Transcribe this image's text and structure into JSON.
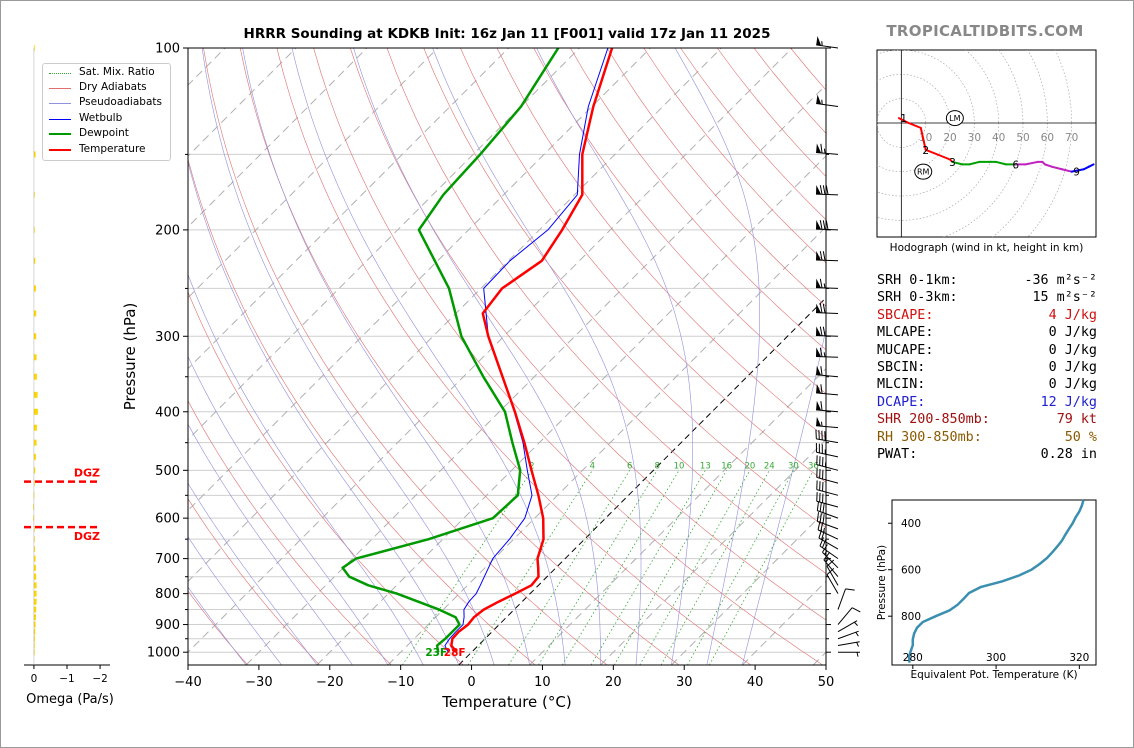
{
  "title": "HRRR Sounding at KDKB Init: 16z Jan 11 [F001] valid 17z Jan 11 2025",
  "brand": "TROPICALTIDBITS.COM",
  "colors": {
    "temperature": "#ff0000",
    "dewpoint": "#009900",
    "wetbulb": "#0000ff",
    "dry_adiabat": "#e07070",
    "pseudoadiabat": "#9090e0",
    "mixing_ratio": "#33aa33",
    "dgz": "#ff0000",
    "omega_bar": "#ffd700",
    "theta_e": "#3a8fb0",
    "hodo_red": "#ff0000",
    "hodo_green": "#00a000",
    "hodo_magenta": "#c020c0",
    "hodo_blue": "#0000ff",
    "srh_text": "#000000",
    "cape_text": "#d01010",
    "dcape_text": "#2020d0",
    "shr_text": "#a01010",
    "rh_text": "#8b5a00"
  },
  "legend": [
    {
      "label": "Sat. Mix. Ratio",
      "style": "mixing"
    },
    {
      "label": "Dry Adiabats",
      "style": "dry"
    },
    {
      "label": "Pseudoadiabats",
      "style": "pseudo"
    },
    {
      "label": "Wetbulb",
      "style": "wetbulb"
    },
    {
      "label": "Dewpoint",
      "style": "dewpoint"
    },
    {
      "label": "Temperature",
      "style": "temperature"
    }
  ],
  "surface_labels": {
    "dewpoint": "23F",
    "temperature": "28F"
  },
  "dgz_label": "DGZ",
  "parameters": [
    {
      "label": "SRH 0-1km:",
      "value": "-36 m²s⁻²",
      "color": "srh_text"
    },
    {
      "label": "SRH 0-3km:",
      "value": "15 m²s⁻²",
      "color": "srh_text"
    },
    {
      "label": "SBCAPE:",
      "value": "4 J/kg",
      "color": "cape_text"
    },
    {
      "label": "MLCAPE:",
      "value": "0 J/kg",
      "color": "srh_text"
    },
    {
      "label": "MUCAPE:",
      "value": "0 J/kg",
      "color": "srh_text"
    },
    {
      "label": "SBCIN:",
      "value": "0 J/kg",
      "color": "srh_text"
    },
    {
      "label": "MLCIN:",
      "value": "0 J/kg",
      "color": "srh_text"
    },
    {
      "label": "DCAPE:",
      "value": "12 J/kg",
      "color": "dcape_text"
    },
    {
      "label": "SHR 200-850mb:",
      "value": "79 kt",
      "color": "shr_text"
    },
    {
      "label": "RH 300-850mb:",
      "value": "50 %",
      "color": "rh_text"
    },
    {
      "label": "PWAT:",
      "value": "0.28 in",
      "color": "srh_text"
    }
  ],
  "chart_data": [
    {
      "type": "line",
      "name": "skew-t",
      "xlabel": "Temperature (°C)",
      "ylabel": "Pressure (hPa)",
      "xlim": [
        -40,
        50
      ],
      "ylim": [
        1050,
        100
      ],
      "y_log": true,
      "skew_degrees": 45,
      "xticks": [
        -40,
        -30,
        -20,
        -10,
        0,
        10,
        20,
        30,
        40,
        50
      ],
      "yticks": [
        100,
        200,
        300,
        400,
        500,
        600,
        700,
        800,
        900,
        1000
      ],
      "grid": true,
      "legend_position": "top-left",
      "series": [
        {
          "name": "Temperature",
          "points": [
            [
              1000,
              -2.1
            ],
            [
              975,
              -3.8
            ],
            [
              950,
              -4.6
            ],
            [
              925,
              -4.7
            ],
            [
              900,
              -4.4
            ],
            [
              875,
              -4.6
            ],
            [
              850,
              -4.3
            ],
            [
              825,
              -3.3
            ],
            [
              800,
              -2.1
            ],
            [
              775,
              -1.0
            ],
            [
              750,
              -1.2
            ],
            [
              725,
              -2.5
            ],
            [
              700,
              -3.9
            ],
            [
              650,
              -5.8
            ],
            [
              600,
              -8.8
            ],
            [
              550,
              -12.7
            ],
            [
              500,
              -17.2
            ],
            [
              450,
              -22.1
            ],
            [
              400,
              -27.8
            ],
            [
              350,
              -34.5
            ],
            [
              300,
              -42.2
            ],
            [
              275,
              -46.2
            ],
            [
              250,
              -47.0
            ],
            [
              225,
              -45.3
            ],
            [
              200,
              -46.8
            ],
            [
              175,
              -48.9
            ],
            [
              150,
              -54.6
            ],
            [
              125,
              -59.8
            ],
            [
              100,
              -65.4
            ]
          ]
        },
        {
          "name": "Dewpoint",
          "points": [
            [
              1000,
              -4.7
            ],
            [
              975,
              -5.8
            ],
            [
              950,
              -5.6
            ],
            [
              925,
              -5.6
            ],
            [
              900,
              -5.6
            ],
            [
              875,
              -7.2
            ],
            [
              850,
              -10.6
            ],
            [
              800,
              -18.8
            ],
            [
              775,
              -24.0
            ],
            [
              750,
              -27.9
            ],
            [
              725,
              -30.1
            ],
            [
              700,
              -29.5
            ],
            [
              650,
              -22.0
            ],
            [
              600,
              -15.9
            ],
            [
              550,
              -15.6
            ],
            [
              500,
              -18.8
            ],
            [
              450,
              -23.8
            ],
            [
              400,
              -29.2
            ],
            [
              350,
              -37.2
            ],
            [
              300,
              -46.0
            ],
            [
              250,
              -54.5
            ],
            [
              200,
              -67.0
            ],
            [
              175,
              -68.5
            ],
            [
              150,
              -69.0
            ],
            [
              125,
              -70.0
            ],
            [
              100,
              -73.0
            ]
          ]
        },
        {
          "name": "Wetbulb",
          "points": [
            [
              1000,
              -3.3
            ],
            [
              975,
              -4.7
            ],
            [
              950,
              -5.0
            ],
            [
              925,
              -5.1
            ],
            [
              900,
              -5.1
            ],
            [
              875,
              -6.0
            ],
            [
              850,
              -7.1
            ],
            [
              825,
              -7.5
            ],
            [
              800,
              -7.6
            ],
            [
              775,
              -8.2
            ],
            [
              700,
              -10.2
            ],
            [
              650,
              -10.6
            ],
            [
              600,
              -11.4
            ],
            [
              550,
              -13.6
            ],
            [
              500,
              -17.8
            ],
            [
              450,
              -22.3
            ],
            [
              400,
              -27.9
            ],
            [
              350,
              -34.5
            ],
            [
              300,
              -42.2
            ],
            [
              250,
              -49.6
            ],
            [
              225,
              -49.8
            ],
            [
              200,
              -48.8
            ],
            [
              175,
              -49.6
            ],
            [
              150,
              -55.0
            ],
            [
              125,
              -60.5
            ],
            [
              100,
              -66.0
            ]
          ]
        }
      ],
      "dgz_pressures": [
        522,
        621
      ]
    },
    {
      "type": "bar",
      "name": "omega",
      "xlabel": "Omega (Pa/s)",
      "xlim": [
        0.3,
        -2.3
      ],
      "xticks": [
        0,
        -1,
        -2
      ],
      "ylim": [
        1050,
        100
      ],
      "y_log": true,
      "levels": [
        100,
        150,
        175,
        200,
        225,
        250,
        275,
        300,
        325,
        350,
        375,
        400,
        425,
        450,
        475,
        500,
        525,
        550,
        575,
        600,
        625,
        650,
        675,
        700,
        725,
        750,
        775,
        800,
        825,
        850,
        875,
        900,
        925,
        950,
        975,
        1000
      ],
      "values": [
        -0.02,
        -0.05,
        -0.02,
        -0.02,
        -0.04,
        -0.06,
        -0.07,
        -0.07,
        -0.08,
        -0.09,
        -0.11,
        -0.12,
        -0.09,
        -0.08,
        -0.06,
        -0.04,
        -0.02,
        0.01,
        0.02,
        0.02,
        -0.01,
        -0.02,
        -0.03,
        -0.05,
        -0.06,
        -0.07,
        -0.08,
        -0.08,
        -0.08,
        -0.07,
        -0.06,
        -0.05,
        -0.04,
        -0.03,
        -0.02,
        -0.01
      ]
    },
    {
      "type": "line",
      "name": "hodograph",
      "xlabel": "Hodograph (wind in kt, height in km)",
      "xlim": [
        -10,
        80
      ],
      "ylim": [
        -48,
        30
      ],
      "ring_labels": [
        "10",
        "20",
        "30",
        "40",
        "50",
        "60",
        "70"
      ],
      "ring_values": [
        10,
        20,
        30,
        40,
        50,
        60,
        70
      ],
      "points": [
        [
          -1,
          2,
          "red"
        ],
        [
          3,
          0,
          "red"
        ],
        [
          8,
          -2,
          "red"
        ],
        [
          10,
          -11,
          "red"
        ],
        [
          15,
          -13,
          "red"
        ],
        [
          20,
          -15,
          "red"
        ],
        [
          21,
          -16,
          "red"
        ],
        [
          25,
          -17,
          "green"
        ],
        [
          28,
          -17,
          "green"
        ],
        [
          32,
          -16,
          "green"
        ],
        [
          36,
          -16,
          "green"
        ],
        [
          39,
          -16,
          "green"
        ],
        [
          43,
          -17,
          "green"
        ],
        [
          47,
          -17,
          "green"
        ],
        [
          51,
          -17,
          "magenta"
        ],
        [
          56,
          -16,
          "magenta"
        ],
        [
          58,
          -16,
          "magenta"
        ],
        [
          59,
          -17,
          "magenta"
        ],
        [
          62,
          -18,
          "magenta"
        ],
        [
          66,
          -19,
          "magenta"
        ],
        [
          70,
          -20,
          "magenta"
        ],
        [
          75,
          -19,
          "blue"
        ],
        [
          77,
          -18,
          "blue"
        ],
        [
          79,
          -17,
          "blue"
        ]
      ],
      "height_labels": [
        {
          "t": "1",
          "u": 1,
          "v": 2
        },
        {
          "t": "2",
          "u": 10,
          "v": -11
        },
        {
          "t": "3",
          "u": 21,
          "v": -16
        },
        {
          "t": "6",
          "u": 47,
          "v": -17
        },
        {
          "t": "9",
          "u": 72,
          "v": -20
        }
      ],
      "lm_label": "LM",
      "rm_label": "RM",
      "lm": [
        22,
        2
      ],
      "rm": [
        9,
        -20
      ]
    },
    {
      "type": "line",
      "name": "theta-e",
      "xlabel": "Equivalent Pot. Temperature (K)",
      "ylabel": "Pressure (hPa)",
      "xlim": [
        275,
        324
      ],
      "ylim": [
        1010,
        300
      ],
      "xticks": [
        280,
        300,
        320
      ],
      "yticks": [
        400,
        600,
        800
      ],
      "points": [
        [
          1000,
          279.2
        ],
        [
          975,
          279.1
        ],
        [
          950,
          279.5
        ],
        [
          925,
          280.0
        ],
        [
          900,
          280.0
        ],
        [
          875,
          280.3
        ],
        [
          850,
          281.0
        ],
        [
          825,
          282.4
        ],
        [
          800,
          285.5
        ],
        [
          775,
          288.8
        ],
        [
          750,
          290.8
        ],
        [
          725,
          292.2
        ],
        [
          700,
          293.5
        ],
        [
          675,
          296.3
        ],
        [
          650,
          301.5
        ],
        [
          625,
          305.5
        ],
        [
          600,
          308.5
        ],
        [
          575,
          310.5
        ],
        [
          550,
          312.2
        ],
        [
          525,
          313.5
        ],
        [
          500,
          314.7
        ],
        [
          475,
          315.8
        ],
        [
          450,
          316.6
        ],
        [
          425,
          317.5
        ],
        [
          400,
          318.4
        ],
        [
          375,
          319.1
        ],
        [
          350,
          320.0
        ],
        [
          325,
          320.6
        ],
        [
          300,
          321.0
        ]
      ]
    }
  ],
  "wind_barbs": [
    {
      "p": 100,
      "speed": 55,
      "dir": 278
    },
    {
      "p": 125,
      "speed": 55,
      "dir": 278
    },
    {
      "p": 150,
      "speed": 65,
      "dir": 275
    },
    {
      "p": 175,
      "speed": 80,
      "dir": 272
    },
    {
      "p": 200,
      "speed": 80,
      "dir": 272
    },
    {
      "p": 225,
      "speed": 70,
      "dir": 272
    },
    {
      "p": 250,
      "speed": 65,
      "dir": 272
    },
    {
      "p": 275,
      "speed": 70,
      "dir": 272
    },
    {
      "p": 300,
      "speed": 70,
      "dir": 272
    },
    {
      "p": 325,
      "speed": 65,
      "dir": 272
    },
    {
      "p": 350,
      "speed": 60,
      "dir": 275
    },
    {
      "p": 375,
      "speed": 60,
      "dir": 275
    },
    {
      "p": 400,
      "speed": 60,
      "dir": 275
    },
    {
      "p": 425,
      "speed": 55,
      "dir": 275
    },
    {
      "p": 450,
      "speed": 40,
      "dir": 280
    },
    {
      "p": 475,
      "speed": 35,
      "dir": 282
    },
    {
      "p": 500,
      "speed": 35,
      "dir": 285
    },
    {
      "p": 525,
      "speed": 30,
      "dir": 285
    },
    {
      "p": 550,
      "speed": 30,
      "dir": 285
    },
    {
      "p": 575,
      "speed": 30,
      "dir": 285
    },
    {
      "p": 600,
      "speed": 30,
      "dir": 290
    },
    {
      "p": 625,
      "speed": 30,
      "dir": 290
    },
    {
      "p": 650,
      "speed": 25,
      "dir": 295
    },
    {
      "p": 675,
      "speed": 20,
      "dir": 300
    },
    {
      "p": 700,
      "speed": 20,
      "dir": 305
    },
    {
      "p": 725,
      "speed": 15,
      "dir": 315
    },
    {
      "p": 750,
      "speed": 15,
      "dir": 320
    },
    {
      "p": 775,
      "speed": 10,
      "dir": 330
    },
    {
      "p": 800,
      "speed": 10,
      "dir": 330
    },
    {
      "p": 850,
      "speed": 10,
      "dir": 20
    },
    {
      "p": 900,
      "speed": 10,
      "dir": 40
    },
    {
      "p": 925,
      "speed": 5,
      "dir": 60
    },
    {
      "p": 950,
      "speed": 5,
      "dir": 70
    },
    {
      "p": 975,
      "speed": 5,
      "dir": 80
    },
    {
      "p": 1000,
      "speed": 5,
      "dir": 90
    }
  ]
}
